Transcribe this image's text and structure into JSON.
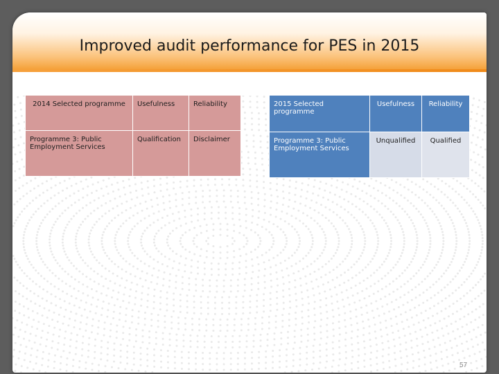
{
  "title": "Improved audit performance for PES in 2015",
  "table_2014": {
    "headers": [
      "2014 Selected programme",
      "Usefulness",
      "Reliability"
    ],
    "rows": [
      [
        "Programme 3: Public Employment Services",
        "Qualification",
        "Disclaimer"
      ]
    ],
    "color": "#d59a99"
  },
  "table_2015": {
    "headers": [
      "2015 Selected programme",
      "Usefulness",
      "Reliability"
    ],
    "rows": [
      [
        "Programme 3: Public Employment Services",
        "Unqualified",
        "Qualified"
      ]
    ],
    "color": "#4f81bd"
  },
  "page_number": "57"
}
